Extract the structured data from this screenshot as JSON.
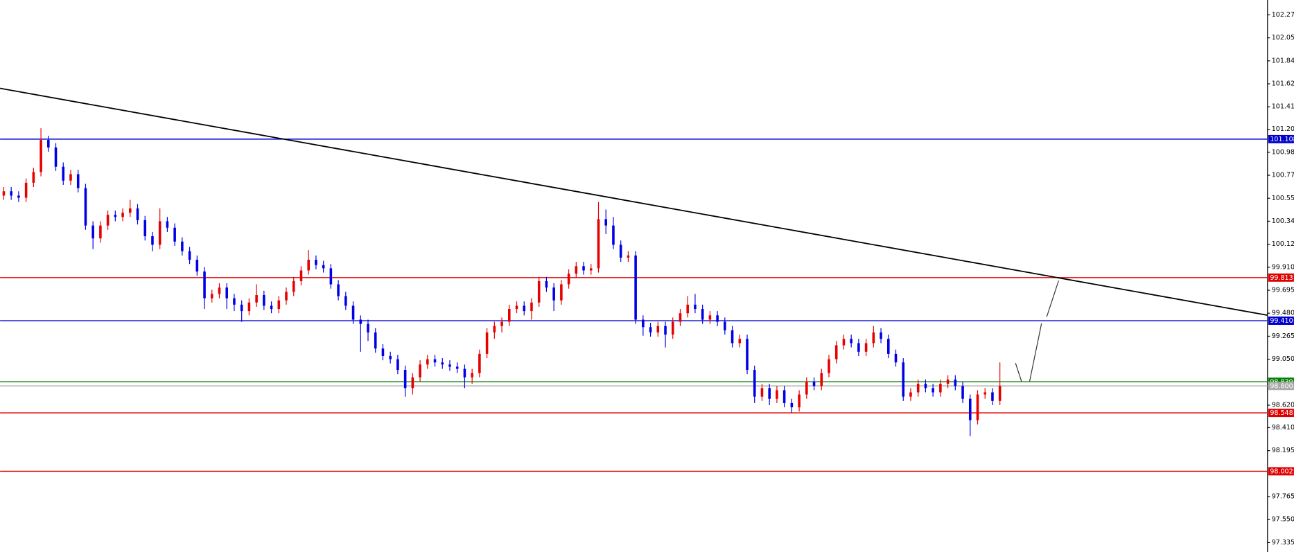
{
  "chart_data": {
    "type": "candlestick",
    "up_color": "#e60000",
    "down_color": "#0000e6",
    "xlim": [
      -0.5,
      170
    ],
    "ylim": [
      97.247,
      102.409
    ],
    "yticks": [
      {
        "value": 102.27,
        "label": "102.270"
      },
      102.055,
      {
        "value": 101.84,
        "label": "101.840"
      },
      101.625,
      {
        "value": 101.41,
        "label": "101.410"
      },
      {
        "value": 101.2,
        "label": "101.200"
      },
      100.985,
      {
        "value": 100.77,
        "label": "100.770"
      },
      100.555,
      {
        "value": 100.34,
        "label": "100.340"
      },
      100.125,
      {
        "value": 99.91,
        "label": "99.910"
      },
      99.695,
      {
        "value": 99.48,
        "label": "99.480"
      },
      99.265,
      {
        "value": 99.05,
        "label": "99.050"
      },
      {
        "value": 98.62,
        "label": "98.620"
      },
      {
        "value": 98.41,
        "label": "98.410"
      },
      98.195,
      97.765,
      {
        "value": 97.55,
        "label": "97.550"
      },
      97.335
    ],
    "x": [
      0,
      1,
      2,
      3,
      4,
      5,
      6,
      7,
      8,
      9,
      10,
      11,
      12,
      13,
      14,
      15,
      16,
      17,
      18,
      19,
      20,
      21,
      22,
      23,
      24,
      25,
      26,
      27,
      28,
      29,
      30,
      31,
      32,
      33,
      34,
      35,
      36,
      37,
      38,
      39,
      40,
      41,
      42,
      43,
      44,
      45,
      46,
      47,
      48,
      49,
      50,
      51,
      52,
      53,
      54,
      55,
      56,
      57,
      58,
      59,
      60,
      61,
      62,
      63,
      64,
      65,
      66,
      67,
      68,
      69,
      70,
      71,
      72,
      73,
      74,
      75,
      76,
      77,
      78,
      79,
      80,
      81,
      82,
      83,
      84,
      85,
      86,
      87,
      88,
      89,
      90,
      91,
      92,
      93,
      94,
      95,
      96,
      97,
      98,
      99,
      100,
      101,
      102,
      103,
      104,
      105,
      106,
      107,
      108,
      109,
      110,
      111,
      112,
      113,
      114,
      115,
      116,
      117,
      118,
      119,
      120,
      121,
      122,
      123,
      124,
      125,
      126,
      127,
      128,
      129,
      130,
      131,
      132,
      133,
      134
    ],
    "open": [
      100.58,
      100.62,
      100.58,
      100.56,
      100.7,
      100.8,
      101.1,
      101.03,
      100.85,
      100.72,
      100.78,
      100.65,
      100.3,
      100.18,
      100.3,
      100.4,
      100.38,
      100.42,
      100.46,
      100.35,
      100.2,
      100.12,
      100.34,
      100.28,
      100.15,
      100.06,
      99.98,
      99.87,
      99.62,
      99.66,
      99.72,
      99.62,
      99.56,
      99.5,
      99.58,
      99.65,
      99.55,
      99.52,
      99.6,
      99.68,
      99.78,
      99.88,
      99.98,
      99.93,
      99.9,
      99.75,
      99.64,
      99.55,
      99.42,
      99.38,
      99.3,
      99.15,
      99.08,
      99.05,
      98.95,
      98.78,
      98.88,
      99.0,
      99.05,
      99.02,
      99.0,
      98.98,
      98.96,
      98.88,
      98.92,
      99.1,
      99.3,
      99.36,
      99.4,
      99.52,
      99.55,
      99.5,
      99.58,
      99.78,
      99.72,
      99.6,
      99.75,
      99.85,
      99.92,
      99.88,
      99.9,
      100.36,
      100.3,
      100.12,
      100.0,
      100.02,
      99.42,
      99.35,
      99.3,
      99.36,
      99.28,
      99.4,
      99.48,
      99.56,
      99.52,
      99.42,
      99.46,
      99.4,
      99.32,
      99.2,
      99.24,
      98.95,
      98.7,
      98.78,
      98.68,
      98.76,
      98.64,
      98.6,
      98.72,
      98.84,
      98.8,
      98.92,
      99.05,
      99.18,
      99.24,
      99.2,
      99.12,
      99.2,
      99.3,
      99.24,
      99.1,
      99.02,
      98.7,
      98.74,
      98.82,
      98.78,
      98.74,
      98.82,
      98.86,
      98.8,
      98.68,
      98.48,
      98.72,
      98.74,
      98.66
    ],
    "high": [
      100.66,
      100.66,
      100.62,
      100.74,
      100.84,
      101.21,
      101.14,
      101.07,
      100.89,
      100.82,
      100.82,
      100.69,
      100.34,
      100.34,
      100.44,
      100.44,
      100.46,
      100.54,
      100.5,
      100.39,
      100.24,
      100.46,
      100.38,
      100.32,
      100.19,
      100.1,
      100.02,
      99.91,
      99.7,
      99.76,
      99.76,
      99.66,
      99.6,
      99.62,
      99.75,
      99.69,
      99.59,
      99.64,
      99.72,
      99.82,
      99.92,
      100.07,
      100.02,
      99.97,
      99.94,
      99.79,
      99.68,
      99.59,
      99.46,
      99.42,
      99.34,
      99.19,
      99.12,
      99.09,
      98.99,
      98.92,
      99.04,
      99.09,
      99.09,
      99.06,
      99.04,
      99.02,
      99.0,
      98.96,
      99.14,
      99.34,
      99.4,
      99.44,
      99.56,
      99.59,
      99.59,
      99.62,
      99.82,
      99.82,
      99.76,
      99.79,
      99.89,
      99.96,
      99.96,
      99.94,
      100.52,
      100.45,
      100.38,
      100.16,
      100.06,
      100.06,
      99.46,
      99.39,
      99.4,
      99.4,
      99.44,
      99.52,
      99.64,
      99.66,
      99.56,
      99.5,
      99.5,
      99.44,
      99.36,
      99.28,
      99.28,
      98.99,
      98.82,
      98.82,
      98.8,
      98.8,
      98.68,
      98.76,
      98.88,
      98.88,
      98.96,
      99.09,
      99.22,
      99.28,
      99.28,
      99.24,
      99.24,
      99.36,
      99.34,
      99.28,
      99.14,
      99.06,
      98.78,
      98.86,
      98.86,
      98.82,
      98.86,
      98.9,
      98.9,
      98.84,
      98.72,
      98.76,
      98.78,
      98.78,
      99.02
    ],
    "low": [
      100.54,
      100.54,
      100.52,
      100.52,
      100.66,
      100.76,
      100.99,
      100.81,
      100.68,
      100.68,
      100.61,
      100.26,
      100.08,
      100.14,
      100.26,
      100.34,
      100.34,
      100.38,
      100.31,
      100.16,
      100.06,
      100.08,
      100.24,
      100.11,
      100.02,
      99.94,
      99.83,
      99.52,
      99.58,
      99.62,
      99.52,
      99.5,
      99.4,
      99.46,
      99.54,
      99.51,
      99.48,
      99.48,
      99.56,
      99.64,
      99.74,
      99.84,
      99.89,
      99.86,
      99.71,
      99.6,
      99.51,
      99.38,
      99.12,
      99.22,
      99.11,
      99.04,
      99.01,
      98.91,
      98.7,
      98.72,
      98.84,
      98.96,
      98.98,
      98.96,
      98.94,
      98.92,
      98.78,
      98.82,
      98.88,
      99.06,
      99.24,
      99.3,
      99.36,
      99.48,
      99.46,
      99.42,
      99.54,
      99.68,
      99.5,
      99.56,
      99.71,
      99.81,
      99.84,
      99.84,
      99.86,
      100.22,
      100.08,
      99.96,
      99.96,
      99.38,
      99.27,
      99.26,
      99.26,
      99.16,
      99.24,
      99.36,
      99.44,
      99.48,
      99.38,
      99.38,
      99.36,
      99.28,
      99.16,
      99.16,
      98.91,
      98.64,
      98.66,
      98.62,
      98.64,
      98.6,
      98.55,
      98.56,
      98.68,
      98.76,
      98.76,
      98.88,
      99.01,
      99.14,
      99.16,
      99.08,
      99.08,
      99.16,
      99.2,
      99.06,
      98.98,
      98.66,
      98.66,
      98.7,
      98.74,
      98.7,
      98.7,
      98.78,
      98.76,
      98.64,
      98.33,
      98.44,
      98.68,
      98.62,
      98.62
    ],
    "close": [
      100.62,
      100.58,
      100.56,
      100.7,
      100.8,
      101.1,
      101.03,
      100.85,
      100.72,
      100.78,
      100.65,
      100.3,
      100.18,
      100.3,
      100.4,
      100.38,
      100.42,
      100.46,
      100.35,
      100.2,
      100.12,
      100.34,
      100.28,
      100.15,
      100.06,
      99.98,
      99.87,
      99.62,
      99.66,
      99.72,
      99.62,
      99.56,
      99.5,
      99.58,
      99.65,
      99.55,
      99.52,
      99.6,
      99.68,
      99.78,
      99.88,
      99.98,
      99.93,
      99.9,
      99.75,
      99.64,
      99.55,
      99.42,
      99.38,
      99.3,
      99.15,
      99.08,
      99.05,
      98.95,
      98.78,
      98.88,
      99.0,
      99.05,
      99.02,
      99.0,
      98.98,
      98.96,
      98.88,
      98.92,
      99.1,
      99.3,
      99.36,
      99.4,
      99.52,
      99.55,
      99.5,
      99.58,
      99.78,
      99.72,
      99.6,
      99.75,
      99.85,
      99.92,
      99.88,
      99.9,
      100.36,
      100.3,
      100.12,
      100.0,
      100.02,
      99.42,
      99.35,
      99.3,
      99.36,
      99.28,
      99.4,
      99.48,
      99.56,
      99.52,
      99.42,
      99.46,
      99.4,
      99.32,
      99.2,
      99.24,
      98.95,
      98.7,
      98.78,
      98.68,
      98.76,
      98.64,
      98.6,
      98.72,
      98.84,
      98.8,
      98.92,
      99.05,
      99.18,
      99.24,
      99.2,
      99.12,
      99.2,
      99.3,
      99.24,
      99.1,
      99.02,
      98.7,
      98.74,
      98.82,
      98.78,
      98.74,
      98.82,
      98.86,
      98.8,
      98.68,
      98.48,
      98.72,
      98.74,
      98.66,
      98.8
    ],
    "levels": [
      {
        "value": 101.108,
        "color": "#0000cc"
      },
      {
        "value": 99.813,
        "color": "#e00000"
      },
      {
        "value": 99.41,
        "label": "99.410",
        "color": "#0000cc"
      },
      {
        "value": 98.839,
        "color": "#008000"
      },
      {
        "value": 98.8,
        "label": "98.800",
        "color": "#a8a8a8"
      },
      {
        "value": 98.548,
        "color": "#e00000"
      },
      {
        "value": 98.002,
        "color": "#e00000"
      }
    ],
    "trendline": {
      "x": [
        -0.5,
        170
      ],
      "y": [
        101.583,
        99.461
      ],
      "color": "#000000"
    },
    "projection": {
      "x": [
        136.1,
        136.9,
        137.5,
        138.0,
        139.6,
        140.0,
        140.3,
        141.9
      ],
      "y": [
        99.014,
        98.844,
        null,
        98.844,
        99.384,
        null,
        99.446,
        99.785
      ],
      "color": "#333333"
    }
  }
}
